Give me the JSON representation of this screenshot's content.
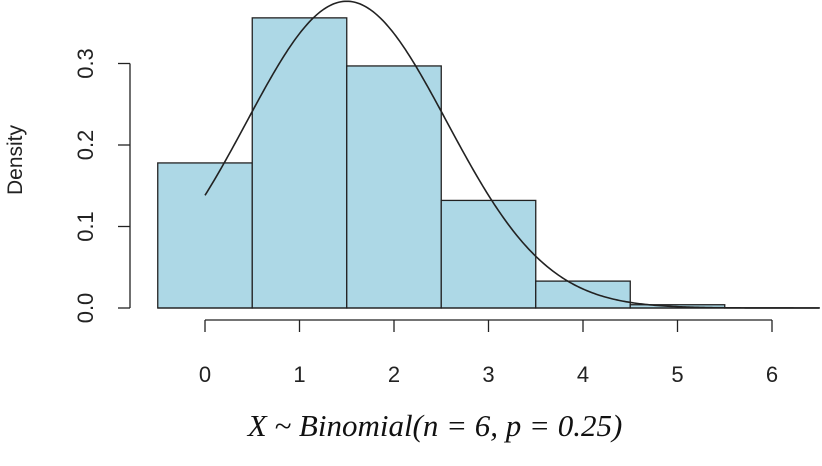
{
  "chart_data": {
    "type": "bar",
    "title": "",
    "xlabel": "X ~ Binomial(n = 6, p = 0.25)",
    "ylabel": "Density",
    "categories": [
      "0",
      "1",
      "2",
      "3",
      "4",
      "5",
      "6"
    ],
    "values": [
      0.178,
      0.356,
      0.297,
      0.132,
      0.033,
      0.004,
      0.0002
    ],
    "xticks": [
      0,
      1,
      2,
      3,
      4,
      5,
      6
    ],
    "yticks": [
      0.0,
      0.1,
      0.2,
      0.3
    ],
    "ytick_labels": [
      "0.0",
      "0.1",
      "0.2",
      "0.3"
    ],
    "ylim": [
      0,
      0.37
    ],
    "xlim": [
      -0.5,
      6.5
    ],
    "overlay": {
      "type": "line",
      "description": "normal density curve",
      "mean": 1.5,
      "sd": 1.06,
      "x_range": [
        0,
        6.5
      ]
    },
    "colors": {
      "bar_fill": "#add8e6",
      "bar_stroke": "#222222",
      "curve": "#222222"
    },
    "grid": false,
    "legend": "none"
  }
}
